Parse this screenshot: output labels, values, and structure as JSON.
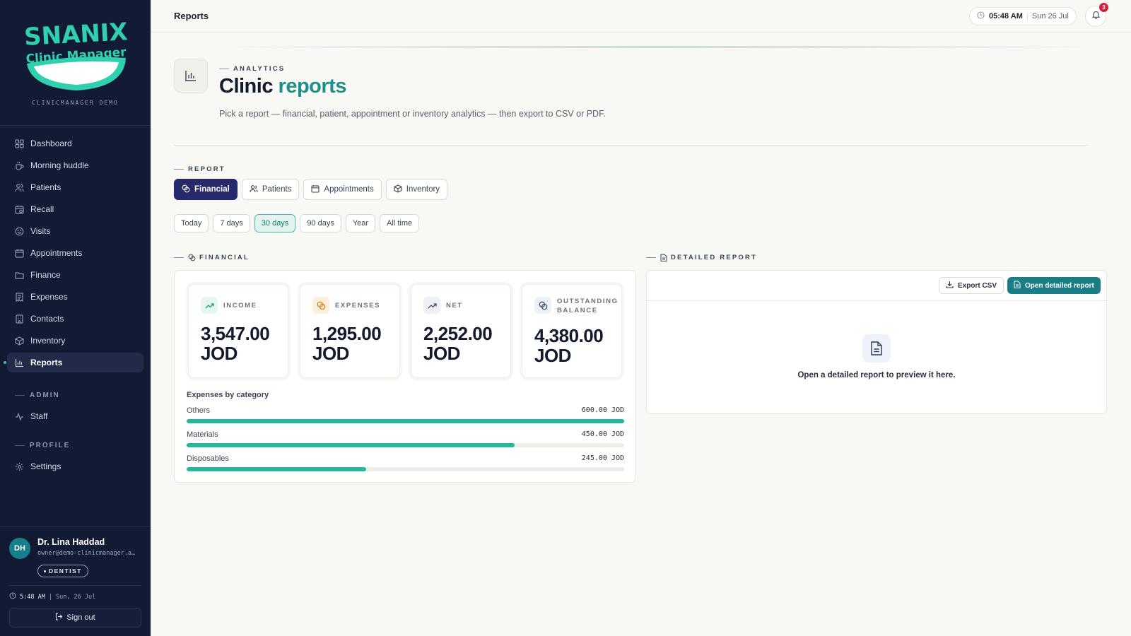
{
  "brand": {
    "name": "SNANIX",
    "product": "Clinic Manager",
    "subtitle": "CLINICMANAGER DEMO"
  },
  "sidebar": {
    "items": [
      {
        "label": "Dashboard",
        "icon": "grid-icon"
      },
      {
        "label": "Morning huddle",
        "icon": "coffee-icon"
      },
      {
        "label": "Patients",
        "icon": "users-icon"
      },
      {
        "label": "Recall",
        "icon": "calendar-clock-icon"
      },
      {
        "label": "Visits",
        "icon": "smile-icon"
      },
      {
        "label": "Appointments",
        "icon": "calendar-icon"
      },
      {
        "label": "Finance",
        "icon": "folder-icon"
      },
      {
        "label": "Expenses",
        "icon": "receipt-icon"
      },
      {
        "label": "Contacts",
        "icon": "building-icon"
      },
      {
        "label": "Inventory",
        "icon": "box-icon"
      },
      {
        "label": "Reports",
        "icon": "bar-chart-icon",
        "active": true
      }
    ],
    "admin_title": "ADMIN",
    "admin_items": [
      {
        "label": "Staff",
        "icon": "activity-icon"
      }
    ],
    "profile_title": "PROFILE",
    "profile_items": [
      {
        "label": "Settings",
        "icon": "gear-icon"
      }
    ]
  },
  "user": {
    "initials": "DH",
    "name": "Dr. Lina Haddad",
    "email": "owner@demo-clinicmanager.a…",
    "role": "DENTIST",
    "time": "5:48 AM",
    "date": "Sun, 26 Jul",
    "signout": "Sign out"
  },
  "topbar": {
    "title": "Reports",
    "time": "05:48 AM",
    "date": "Sun 26 Jul",
    "notifications": "3"
  },
  "header": {
    "kicker": "ANALYTICS",
    "title_main": "Clinic",
    "title_accent": "reports",
    "description": "Pick a report — financial, patient, appointment or inventory analytics — then export to CSV or PDF."
  },
  "report": {
    "kicker": "REPORT",
    "tabs": [
      "Financial",
      "Patients",
      "Appointments",
      "Inventory"
    ],
    "active_tab": "Financial",
    "ranges": [
      "Today",
      "7 days",
      "30 days",
      "90 days",
      "Year",
      "All time"
    ],
    "active_range": "30 days"
  },
  "financial": {
    "kicker": "FINANCIAL",
    "kpis": [
      {
        "label": "INCOME",
        "value": "3,547.00",
        "unit": "JOD",
        "icon": "trending-up-icon",
        "color": "#e5f5ef"
      },
      {
        "label": "EXPENSES",
        "value": "1,295.00",
        "unit": "JOD",
        "icon": "coins-icon",
        "color": "#fcf0dd"
      },
      {
        "label": "NET",
        "value": "2,252.00",
        "unit": "JOD",
        "icon": "trending-up-icon",
        "color": "#eef0f6"
      },
      {
        "label": "OUTSTANDING",
        "label2": "BALANCE",
        "value": "4,380.00",
        "unit": "JOD",
        "icon": "coins-icon",
        "color": "#eef0f6"
      }
    ],
    "categories_title": "Expenses by category",
    "categories": [
      {
        "label": "Others",
        "value": "600.00 JOD",
        "fraction": 1.0
      },
      {
        "label": "Materials",
        "value": "450.00 JOD",
        "fraction": 0.75
      },
      {
        "label": "Disposables",
        "value": "245.00 JOD",
        "fraction": 0.41
      }
    ]
  },
  "detailed": {
    "kicker": "DETAILED REPORT",
    "export_csv": "Export CSV",
    "open_report": "Open detailed report",
    "empty": "Open a detailed report to preview it here."
  },
  "colors": {
    "accent": "#1f8f8a",
    "sidebar": "#131a33",
    "primary": "#262a6b",
    "bar": "#22b89a",
    "badge": "#d0213e"
  }
}
